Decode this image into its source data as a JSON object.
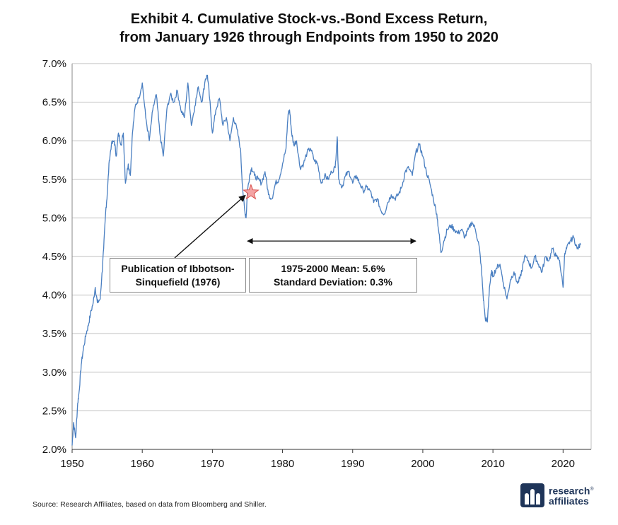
{
  "title": {
    "line1": "Exhibit 4. Cumulative Stock-vs.-Bond Excess Return,",
    "line2": "from January 1926 through Endpoints from 1950 to 2020"
  },
  "source": "Source: Research Affiliates, based on data from Bloomberg and Shiller.",
  "logo": {
    "line1": "research",
    "line2": "affiliates",
    "mark": "®"
  },
  "annotations": {
    "publication": {
      "line1": "Publication of Ibbotson-",
      "line2": "Sinquefield (1976)"
    },
    "mean": {
      "line1": "1975-2000 Mean:  5.6%",
      "line2": "Standard Deviation:  0.3%"
    }
  },
  "colors": {
    "line": "#4a7fc1",
    "grid": "#bfbfbf",
    "star_fill": "#f4a3a3",
    "star_stroke": "#d9534f",
    "logo": "#1f3559"
  },
  "chart_data": {
    "type": "line",
    "x_tick_labels": [
      "1950",
      "1960",
      "1970",
      "1980",
      "1990",
      "2000",
      "2010",
      "2020"
    ],
    "y_tick_labels": [
      "2.0%",
      "2.5%",
      "3.0%",
      "3.5%",
      "4.0%",
      "4.5%",
      "5.0%",
      "5.5%",
      "6.0%",
      "6.5%",
      "7.0%"
    ],
    "xlim": [
      1950,
      2024
    ],
    "ylim": [
      2.0,
      7.0
    ],
    "grid": true,
    "marker": {
      "x": 1975.5,
      "y": 5.33
    },
    "range_arrow": {
      "x_start": 1975,
      "x_end": 1999,
      "y": 4.7
    },
    "series": [
      {
        "x": [
          1950.0,
          1950.2,
          1950.5,
          1950.8,
          1951.0,
          1951.3,
          1951.6,
          1952.0,
          1952.3,
          1952.6,
          1953.0,
          1953.3,
          1953.6,
          1954.0,
          1954.2,
          1954.5,
          1954.8,
          1955.0,
          1955.3,
          1955.6,
          1956.0,
          1956.3,
          1956.6,
          1957.0,
          1957.3,
          1957.6,
          1958.0,
          1958.3,
          1958.6,
          1959.0,
          1959.5,
          1960.0,
          1960.5,
          1961.0,
          1961.5,
          1962.0,
          1962.5,
          1963.0,
          1963.5,
          1964.0,
          1964.5,
          1965.0,
          1965.5,
          1966.0,
          1966.5,
          1967.0,
          1967.5,
          1968.0,
          1968.5,
          1969.0,
          1969.3,
          1969.6,
          1970.0,
          1970.5,
          1971.0,
          1971.5,
          1972.0,
          1972.5,
          1973.0,
          1973.5,
          1974.0,
          1974.3,
          1974.6,
          1974.8,
          1975.0,
          1975.3,
          1975.6,
          1976.0,
          1976.5,
          1977.0,
          1977.5,
          1978.0,
          1978.5,
          1979.0,
          1979.5,
          1980.0,
          1980.5,
          1980.8,
          1981.0,
          1981.3,
          1981.6,
          1982.0,
          1982.5,
          1983.0,
          1983.5,
          1984.0,
          1984.5,
          1985.0,
          1985.5,
          1986.0,
          1986.5,
          1987.0,
          1987.5,
          1987.8,
          1988.0,
          1988.5,
          1989.0,
          1989.5,
          1990.0,
          1990.5,
          1991.0,
          1991.5,
          1992.0,
          1992.5,
          1993.0,
          1993.5,
          1994.0,
          1994.5,
          1995.0,
          1995.5,
          1996.0,
          1996.5,
          1997.0,
          1997.5,
          1998.0,
          1998.5,
          1999.0,
          1999.5,
          2000.0,
          2000.5,
          2001.0,
          2001.5,
          2002.0,
          2002.3,
          2002.6,
          2003.0,
          2003.5,
          2004.0,
          2004.5,
          2005.0,
          2005.5,
          2006.0,
          2006.5,
          2007.0,
          2007.5,
          2008.0,
          2008.3,
          2008.6,
          2008.9,
          2009.2,
          2009.5,
          2009.8,
          2010.0,
          2010.5,
          2011.0,
          2011.5,
          2012.0,
          2012.5,
          2013.0,
          2013.5,
          2014.0,
          2014.5,
          2015.0,
          2015.5,
          2016.0,
          2016.5,
          2017.0,
          2017.5,
          2018.0,
          2018.5,
          2019.0,
          2019.5,
          2020.0,
          2020.2,
          2020.5,
          2021.0,
          2021.5,
          2022.0,
          2022.5
        ],
        "y": [
          2.05,
          2.35,
          2.15,
          2.6,
          2.75,
          3.1,
          3.3,
          3.5,
          3.6,
          3.75,
          3.9,
          4.1,
          3.9,
          3.95,
          4.2,
          4.6,
          5.1,
          5.3,
          5.75,
          5.95,
          6.0,
          5.8,
          6.1,
          5.95,
          6.1,
          5.45,
          5.7,
          5.55,
          6.1,
          6.45,
          6.55,
          6.75,
          6.3,
          6.0,
          6.4,
          6.6,
          6.1,
          5.8,
          6.4,
          6.6,
          6.5,
          6.65,
          6.4,
          6.3,
          6.75,
          6.2,
          6.45,
          6.7,
          6.5,
          6.8,
          6.85,
          6.55,
          6.1,
          6.4,
          6.55,
          6.2,
          6.3,
          6.0,
          6.3,
          6.15,
          5.9,
          5.4,
          5.1,
          5.0,
          5.35,
          5.55,
          5.65,
          5.55,
          5.5,
          5.45,
          5.6,
          5.3,
          5.25,
          5.45,
          5.5,
          5.7,
          5.9,
          6.35,
          6.4,
          6.1,
          5.95,
          6.0,
          5.65,
          5.7,
          5.85,
          5.9,
          5.75,
          5.7,
          5.45,
          5.55,
          5.5,
          5.6,
          5.65,
          6.05,
          5.5,
          5.4,
          5.55,
          5.6,
          5.45,
          5.55,
          5.45,
          5.35,
          5.4,
          5.35,
          5.2,
          5.25,
          5.1,
          5.05,
          5.2,
          5.3,
          5.25,
          5.3,
          5.4,
          5.6,
          5.65,
          5.55,
          5.85,
          5.95,
          5.8,
          5.6,
          5.45,
          5.25,
          5.05,
          4.8,
          4.55,
          4.7,
          4.85,
          4.9,
          4.85,
          4.8,
          4.85,
          4.75,
          4.85,
          4.95,
          4.85,
          4.65,
          4.4,
          4.0,
          3.7,
          3.65,
          4.1,
          4.3,
          4.25,
          4.35,
          4.4,
          4.15,
          3.95,
          4.2,
          4.3,
          4.15,
          4.25,
          4.5,
          4.45,
          4.35,
          4.5,
          4.4,
          4.3,
          4.5,
          4.45,
          4.6,
          4.5,
          4.45,
          4.1,
          4.5,
          4.6,
          4.7,
          4.75,
          4.6,
          4.65
        ]
      }
    ]
  }
}
